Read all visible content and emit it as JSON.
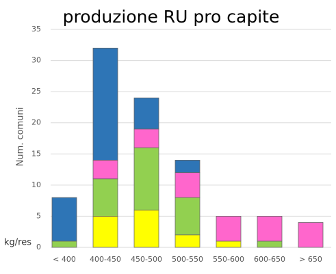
{
  "chart_data": {
    "type": "stacked_bar",
    "title": "produzione RU pro capite",
    "y_label": "Num. comuni",
    "x_label": "kg/res",
    "categories": [
      "< 400",
      "400-450",
      "450-500",
      "500-550",
      "550-600",
      "600-650",
      "> 650"
    ],
    "series": [
      {
        "color": "#ffff00",
        "values": [
          0,
          5,
          6,
          2,
          1,
          0,
          0
        ]
      },
      {
        "color": "#92d050",
        "values": [
          1,
          6,
          10,
          6,
          0,
          1,
          0
        ]
      },
      {
        "color": "#ff66cc",
        "values": [
          0,
          3,
          3,
          4,
          4,
          4,
          4
        ]
      },
      {
        "color": "#2e75b6",
        "values": [
          7,
          18,
          5,
          2,
          0,
          0,
          0
        ]
      }
    ],
    "ylim": [
      0,
      35
    ],
    "yticks": [
      0,
      5,
      10,
      15,
      20,
      25,
      30,
      35
    ],
    "grid": true
  }
}
